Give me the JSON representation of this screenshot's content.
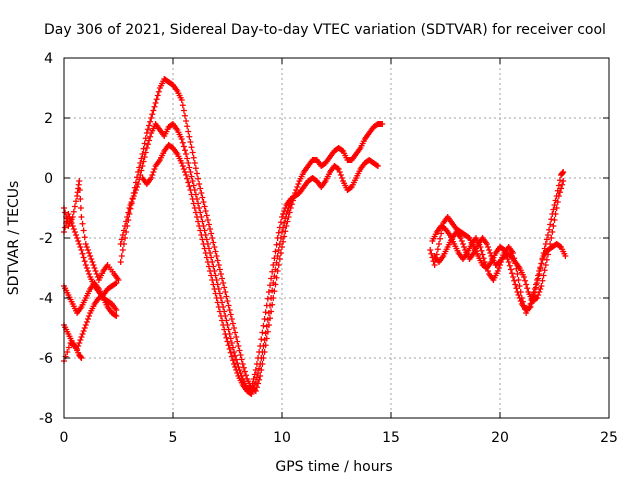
{
  "chart_data": {
    "type": "scatter",
    "title": "Day 306 of 2021, Sidereal Day-to-day VTEC variation (SDTVAR) for receiver cool",
    "xlabel": "GPS time / hours",
    "ylabel": "SDTVAR / TECUs",
    "xlim": [
      0,
      25
    ],
    "ylim": [
      -8,
      4
    ],
    "grid": true,
    "marker": "+",
    "color": "#ff0000",
    "x_ticks": [
      0,
      5,
      10,
      15,
      20,
      25
    ],
    "y_ticks": [
      -8,
      -6,
      -4,
      -2,
      0,
      2,
      4
    ],
    "x_tick_labels": [
      "0",
      "5",
      "10",
      "15",
      "20",
      "25"
    ],
    "y_tick_labels": [
      "-8",
      "-6",
      "-4",
      "-2",
      "0",
      "2",
      "4"
    ],
    "series": [
      {
        "name": "trace-1",
        "points": [
          [
            0.0,
            -1.0
          ],
          [
            0.2,
            -1.6
          ],
          [
            0.4,
            -1.3
          ],
          [
            0.6,
            -0.6
          ],
          [
            0.7,
            -0.1
          ],
          [
            0.8,
            -1.3
          ],
          [
            1.0,
            -2.2
          ],
          [
            1.2,
            -2.6
          ],
          [
            1.4,
            -3.0
          ],
          [
            1.6,
            -3.4
          ],
          [
            1.8,
            -3.1
          ],
          [
            2.0,
            -2.9
          ],
          [
            2.3,
            -3.2
          ],
          [
            2.5,
            -3.4
          ]
        ]
      },
      {
        "name": "trace-2",
        "points": [
          [
            0.0,
            -1.8
          ],
          [
            0.2,
            -1.2
          ],
          [
            0.4,
            -1.6
          ],
          [
            0.6,
            -2.0
          ],
          [
            0.8,
            -2.4
          ],
          [
            1.0,
            -2.9
          ],
          [
            1.2,
            -3.3
          ],
          [
            1.4,
            -3.6
          ],
          [
            1.6,
            -3.8
          ],
          [
            1.8,
            -4.0
          ],
          [
            2.0,
            -4.1
          ],
          [
            2.2,
            -4.2
          ],
          [
            2.4,
            -4.4
          ]
        ]
      },
      {
        "name": "trace-3",
        "points": [
          [
            0.0,
            -3.6
          ],
          [
            0.2,
            -3.9
          ],
          [
            0.4,
            -4.2
          ],
          [
            0.6,
            -4.5
          ],
          [
            0.8,
            -4.3
          ],
          [
            1.0,
            -4.0
          ],
          [
            1.2,
            -3.7
          ],
          [
            1.4,
            -3.5
          ],
          [
            1.6,
            -3.7
          ],
          [
            1.8,
            -4.0
          ],
          [
            2.0,
            -4.3
          ],
          [
            2.2,
            -4.5
          ],
          [
            2.4,
            -4.6
          ]
        ]
      },
      {
        "name": "trace-4",
        "points": [
          [
            0.0,
            -4.9
          ],
          [
            0.2,
            -5.2
          ],
          [
            0.4,
            -5.5
          ],
          [
            0.6,
            -5.7
          ],
          [
            0.8,
            -5.3
          ],
          [
            1.0,
            -4.9
          ],
          [
            1.2,
            -4.5
          ],
          [
            1.4,
            -4.2
          ],
          [
            1.6,
            -4.0
          ],
          [
            1.8,
            -3.9
          ],
          [
            2.0,
            -3.7
          ],
          [
            2.2,
            -3.6
          ],
          [
            2.4,
            -3.5
          ],
          [
            0.0,
            -6.1
          ],
          [
            0.3,
            -5.5
          ],
          [
            0.5,
            -5.6
          ],
          [
            0.7,
            -5.9
          ],
          [
            0.8,
            -6.0
          ]
        ]
      },
      {
        "name": "trace-5",
        "points": [
          [
            2.6,
            -2.8
          ],
          [
            2.8,
            -2.0
          ],
          [
            3.0,
            -1.2
          ],
          [
            3.2,
            -0.5
          ],
          [
            3.4,
            0.2
          ],
          [
            3.6,
            0.8
          ],
          [
            3.8,
            1.5
          ],
          [
            4.0,
            2.0
          ],
          [
            4.2,
            2.5
          ],
          [
            4.4,
            3.0
          ],
          [
            4.6,
            3.3
          ],
          [
            4.8,
            3.2
          ],
          [
            5.0,
            3.1
          ],
          [
            5.2,
            2.9
          ],
          [
            5.4,
            2.6
          ],
          [
            5.6,
            1.9
          ],
          [
            5.8,
            1.2
          ],
          [
            6.0,
            0.5
          ],
          [
            6.2,
            -0.2
          ],
          [
            6.4,
            -0.8
          ],
          [
            6.6,
            -1.4
          ],
          [
            6.8,
            -2.0
          ],
          [
            7.0,
            -2.6
          ],
          [
            7.2,
            -3.2
          ],
          [
            7.4,
            -3.8
          ],
          [
            7.6,
            -4.4
          ],
          [
            7.8,
            -5.0
          ],
          [
            8.0,
            -5.6
          ],
          [
            8.2,
            -6.2
          ],
          [
            8.4,
            -6.7
          ],
          [
            8.6,
            -7.0
          ],
          [
            8.8,
            -7.1
          ],
          [
            9.0,
            -6.6
          ],
          [
            9.2,
            -5.8
          ],
          [
            9.4,
            -4.9
          ],
          [
            9.6,
            -4.0
          ],
          [
            9.8,
            -3.1
          ],
          [
            10.0,
            -2.3
          ],
          [
            10.2,
            -1.6
          ],
          [
            10.4,
            -1.0
          ],
          [
            10.6,
            -0.5
          ],
          [
            10.8,
            -0.1
          ],
          [
            11.0,
            0.2
          ],
          [
            11.2,
            0.4
          ],
          [
            11.4,
            0.6
          ],
          [
            11.6,
            0.6
          ],
          [
            11.8,
            0.4
          ],
          [
            12.0,
            0.5
          ],
          [
            12.2,
            0.7
          ],
          [
            12.4,
            0.9
          ],
          [
            12.6,
            1.0
          ],
          [
            12.8,
            0.9
          ],
          [
            13.0,
            0.6
          ],
          [
            13.2,
            0.6
          ],
          [
            13.4,
            0.8
          ],
          [
            13.6,
            1.0
          ],
          [
            13.8,
            1.3
          ],
          [
            14.0,
            1.5
          ],
          [
            14.2,
            1.7
          ],
          [
            14.4,
            1.8
          ],
          [
            14.6,
            1.8
          ]
        ]
      },
      {
        "name": "trace-6",
        "points": [
          [
            2.6,
            -2.2
          ],
          [
            2.8,
            -1.6
          ],
          [
            3.0,
            -1.0
          ],
          [
            3.2,
            -0.6
          ],
          [
            3.4,
            -0.2
          ],
          [
            3.6,
            0.4
          ],
          [
            3.8,
            1.0
          ],
          [
            4.0,
            1.5
          ],
          [
            4.2,
            1.8
          ],
          [
            4.4,
            1.6
          ],
          [
            4.6,
            1.4
          ],
          [
            4.8,
            1.7
          ],
          [
            5.0,
            1.8
          ],
          [
            5.2,
            1.6
          ],
          [
            5.4,
            1.3
          ],
          [
            5.6,
            0.8
          ],
          [
            5.8,
            0.2
          ],
          [
            6.0,
            -0.4
          ],
          [
            6.2,
            -1.0
          ],
          [
            6.4,
            -1.6
          ],
          [
            6.6,
            -2.2
          ],
          [
            6.8,
            -2.8
          ],
          [
            7.0,
            -3.4
          ],
          [
            7.2,
            -4.0
          ],
          [
            7.4,
            -4.6
          ],
          [
            7.6,
            -5.2
          ],
          [
            7.8,
            -5.8
          ],
          [
            8.0,
            -6.3
          ],
          [
            8.2,
            -6.7
          ],
          [
            8.4,
            -7.0
          ],
          [
            8.6,
            -7.0
          ],
          [
            8.8,
            -6.4
          ],
          [
            9.0,
            -5.6
          ],
          [
            9.2,
            -4.7
          ],
          [
            9.4,
            -3.8
          ],
          [
            9.6,
            -2.9
          ],
          [
            9.8,
            -2.0
          ],
          [
            10.0,
            -1.3
          ],
          [
            10.2,
            -0.9
          ],
          [
            10.4,
            -0.7
          ],
          [
            10.6,
            -0.6
          ],
          [
            10.8,
            -0.5
          ],
          [
            11.0,
            -0.3
          ],
          [
            11.2,
            -0.1
          ],
          [
            11.4,
            0.0
          ],
          [
            11.6,
            -0.1
          ],
          [
            11.8,
            -0.3
          ],
          [
            12.0,
            -0.1
          ],
          [
            12.2,
            0.2
          ],
          [
            12.4,
            0.4
          ],
          [
            12.6,
            0.3
          ],
          [
            12.8,
            -0.1
          ],
          [
            13.0,
            -0.4
          ],
          [
            13.2,
            -0.3
          ],
          [
            13.4,
            0.0
          ],
          [
            13.6,
            0.3
          ],
          [
            13.8,
            0.5
          ],
          [
            14.0,
            0.6
          ],
          [
            14.2,
            0.5
          ],
          [
            14.4,
            0.4
          ]
        ]
      },
      {
        "name": "trace-7",
        "points": [
          [
            3.6,
            0.0
          ],
          [
            3.8,
            -0.2
          ],
          [
            4.0,
            0.0
          ],
          [
            4.2,
            0.4
          ],
          [
            4.4,
            0.6
          ],
          [
            4.6,
            0.9
          ],
          [
            4.8,
            1.1
          ],
          [
            5.0,
            1.0
          ],
          [
            5.2,
            0.8
          ],
          [
            5.4,
            0.5
          ],
          [
            5.6,
            0.1
          ],
          [
            5.8,
            -0.4
          ],
          [
            6.0,
            -1.0
          ],
          [
            6.2,
            -1.6
          ],
          [
            6.4,
            -2.2
          ],
          [
            6.6,
            -2.8
          ],
          [
            6.8,
            -3.4
          ],
          [
            7.0,
            -4.0
          ],
          [
            7.2,
            -4.6
          ],
          [
            7.4,
            -5.2
          ],
          [
            7.6,
            -5.7
          ],
          [
            7.8,
            -6.2
          ],
          [
            8.0,
            -6.6
          ],
          [
            8.2,
            -6.9
          ],
          [
            8.4,
            -7.1
          ],
          [
            8.6,
            -7.2
          ],
          [
            8.8,
            -6.8
          ],
          [
            9.0,
            -6.2
          ],
          [
            9.2,
            -5.4
          ],
          [
            9.4,
            -4.5
          ],
          [
            9.6,
            -3.5
          ],
          [
            9.8,
            -2.6
          ],
          [
            10.0,
            -1.8
          ],
          [
            10.2,
            -1.2
          ],
          [
            10.4,
            -0.8
          ]
        ]
      },
      {
        "name": "trace-8",
        "points": [
          [
            16.9,
            -2.1
          ],
          [
            17.1,
            -1.8
          ],
          [
            17.3,
            -1.6
          ],
          [
            17.5,
            -1.7
          ],
          [
            17.7,
            -1.9
          ],
          [
            17.9,
            -2.2
          ],
          [
            18.1,
            -2.5
          ],
          [
            18.3,
            -2.7
          ],
          [
            18.5,
            -2.5
          ],
          [
            18.7,
            -2.2
          ],
          [
            18.9,
            -2.0
          ],
          [
            19.1,
            -2.3
          ],
          [
            19.3,
            -2.8
          ],
          [
            19.5,
            -3.2
          ],
          [
            19.7,
            -3.4
          ],
          [
            19.9,
            -3.1
          ],
          [
            20.1,
            -2.7
          ],
          [
            20.3,
            -2.5
          ],
          [
            20.5,
            -2.6
          ],
          [
            20.7,
            -2.8
          ],
          [
            20.9,
            -3.0
          ],
          [
            21.1,
            -3.3
          ],
          [
            21.3,
            -3.8
          ],
          [
            21.5,
            -4.1
          ],
          [
            21.7,
            -4.0
          ],
          [
            21.9,
            -3.6
          ],
          [
            22.1,
            -2.9
          ],
          [
            22.3,
            -2.2
          ],
          [
            22.5,
            -1.4
          ],
          [
            22.7,
            -0.6
          ],
          [
            22.9,
            -0.1
          ]
        ]
      },
      {
        "name": "trace-9",
        "points": [
          [
            17.0,
            -2.6
          ],
          [
            17.2,
            -2.8
          ],
          [
            17.4,
            -2.6
          ],
          [
            17.6,
            -2.3
          ],
          [
            17.8,
            -2.0
          ],
          [
            18.0,
            -1.8
          ],
          [
            18.2,
            -2.0
          ],
          [
            18.4,
            -2.4
          ],
          [
            18.6,
            -2.7
          ],
          [
            18.8,
            -2.5
          ],
          [
            19.0,
            -2.2
          ],
          [
            19.2,
            -2.0
          ],
          [
            19.4,
            -2.2
          ],
          [
            19.6,
            -2.6
          ],
          [
            19.8,
            -2.9
          ],
          [
            20.0,
            -2.8
          ],
          [
            20.2,
            -2.5
          ],
          [
            20.4,
            -2.3
          ],
          [
            20.6,
            -2.5
          ],
          [
            20.8,
            -3.2
          ],
          [
            21.0,
            -4.0
          ],
          [
            21.2,
            -4.5
          ],
          [
            21.4,
            -4.2
          ],
          [
            21.6,
            -3.7
          ],
          [
            21.8,
            -3.1
          ],
          [
            22.0,
            -2.6
          ],
          [
            22.2,
            -2.4
          ],
          [
            22.4,
            -2.3
          ],
          [
            22.6,
            -2.2
          ],
          [
            22.8,
            -2.3
          ],
          [
            23.0,
            -2.6
          ]
        ]
      },
      {
        "name": "trace-10",
        "points": [
          [
            16.8,
            -2.4
          ],
          [
            17.0,
            -2.9
          ],
          [
            17.2,
            -2.2
          ],
          [
            17.4,
            -1.5
          ],
          [
            17.6,
            -1.3
          ],
          [
            17.8,
            -1.5
          ],
          [
            18.0,
            -1.7
          ],
          [
            18.2,
            -1.8
          ],
          [
            18.4,
            -1.9
          ],
          [
            18.6,
            -2.0
          ],
          [
            18.8,
            -2.3
          ],
          [
            19.0,
            -2.6
          ],
          [
            19.2,
            -2.9
          ],
          [
            19.4,
            -3.0
          ],
          [
            19.6,
            -2.8
          ],
          [
            19.8,
            -2.5
          ],
          [
            20.0,
            -2.3
          ],
          [
            20.2,
            -2.4
          ],
          [
            20.4,
            -2.8
          ],
          [
            20.6,
            -3.3
          ],
          [
            20.8,
            -3.8
          ],
          [
            21.0,
            -4.2
          ],
          [
            21.2,
            -4.4
          ],
          [
            21.4,
            -4.3
          ],
          [
            21.6,
            -3.8
          ],
          [
            21.8,
            -3.2
          ],
          [
            22.0,
            -2.5
          ],
          [
            22.2,
            -1.9
          ],
          [
            22.4,
            -1.2
          ],
          [
            22.6,
            -0.6
          ],
          [
            22.8,
            0.1
          ],
          [
            22.9,
            0.2
          ]
        ]
      }
    ]
  }
}
